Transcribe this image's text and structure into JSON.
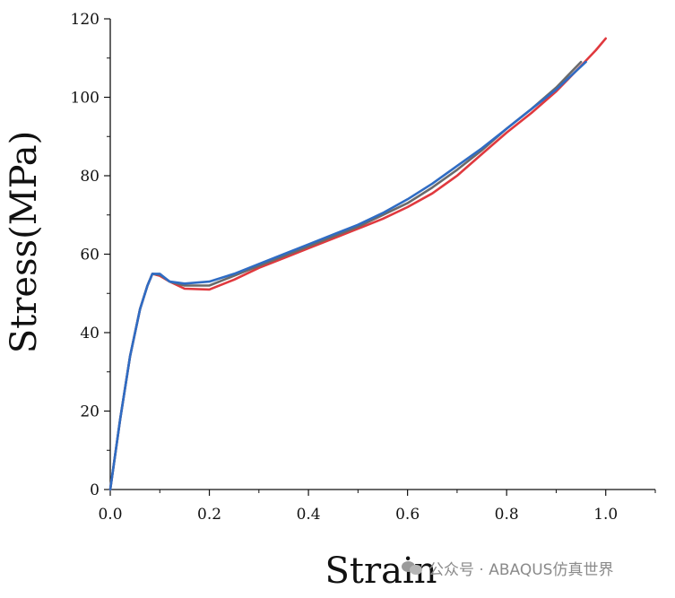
{
  "chart_data": {
    "type": "line",
    "title": "",
    "xlabel": "Strain",
    "ylabel": "Stress(MPa)",
    "xlim": [
      0.0,
      1.1
    ],
    "ylim": [
      0,
      120
    ],
    "x_ticks": [
      0.0,
      0.2,
      0.4,
      0.6,
      0.8,
      1.0
    ],
    "x_tick_labels": [
      "0.0",
      "0.2",
      "0.4",
      "0.6",
      "0.8",
      "1.0"
    ],
    "y_ticks": [
      0,
      20,
      40,
      60,
      80,
      100,
      120
    ],
    "y_tick_labels": [
      "0",
      "20",
      "40",
      "60",
      "80",
      "100",
      "120"
    ],
    "grid": false,
    "series": [
      {
        "color": "#e0393e",
        "x": [
          0.0,
          0.02,
          0.04,
          0.06,
          0.075,
          0.085,
          0.1,
          0.12,
          0.15,
          0.2,
          0.25,
          0.3,
          0.35,
          0.4,
          0.45,
          0.5,
          0.55,
          0.6,
          0.65,
          0.7,
          0.75,
          0.8,
          0.85,
          0.9,
          0.95,
          0.98,
          1.0
        ],
        "y": [
          0,
          18,
          34,
          46,
          52,
          55,
          54.5,
          53,
          51.2,
          51.0,
          53.5,
          56.5,
          59,
          61.5,
          64,
          66.5,
          69,
          72,
          75.5,
          80,
          85.5,
          91,
          96,
          101.5,
          108,
          112,
          115
        ]
      },
      {
        "color": "#6a6a6a",
        "x": [
          0.0,
          0.02,
          0.04,
          0.06,
          0.075,
          0.085,
          0.1,
          0.12,
          0.15,
          0.2,
          0.25,
          0.3,
          0.35,
          0.4,
          0.45,
          0.5,
          0.55,
          0.6,
          0.65,
          0.7,
          0.75,
          0.8,
          0.85,
          0.9,
          0.95
        ],
        "y": [
          0,
          18,
          34,
          46,
          52,
          55,
          54.8,
          53,
          52,
          52,
          54.5,
          57,
          59.5,
          62,
          64.5,
          67,
          70,
          73,
          77,
          81.5,
          86.5,
          92,
          97,
          102.5,
          109
        ]
      },
      {
        "color": "#2f6cc4",
        "x": [
          0.0,
          0.02,
          0.04,
          0.06,
          0.075,
          0.085,
          0.1,
          0.12,
          0.15,
          0.2,
          0.25,
          0.3,
          0.35,
          0.4,
          0.45,
          0.5,
          0.55,
          0.6,
          0.65,
          0.7,
          0.75,
          0.8,
          0.85,
          0.9,
          0.96
        ],
        "y": [
          0,
          18,
          34,
          46,
          52,
          55,
          55,
          53,
          52.5,
          53,
          55,
          57.5,
          60,
          62.5,
          65,
          67.5,
          70.5,
          74,
          78,
          82.5,
          87,
          92,
          97,
          102,
          109
        ]
      }
    ]
  },
  "watermark": {
    "text": "公众号 · ABAQUS仿真世界",
    "icon": "wechat-icon"
  }
}
